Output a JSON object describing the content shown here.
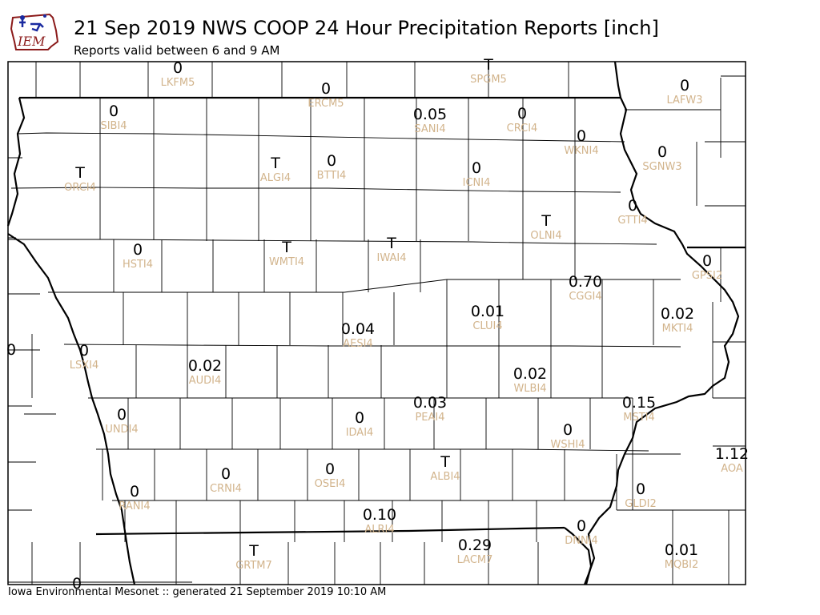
{
  "logo": {
    "text": "IEM"
  },
  "title": "21 Sep 2019 NWS COOP 24 Hour Precipitation Reports [inch]",
  "subtitle": "Reports valid between 6 and 9 AM",
  "footer": "Iowa Environmental Mesonet :: generated 21 September 2019 10:10 AM",
  "colors": {
    "value_text": "#000000",
    "station_id_text": "#d2b48c",
    "background": "#ffffff",
    "logo_red": "#8b1a1a",
    "logo_blue": "#1a2aa0"
  },
  "stations": [
    {
      "id": "LKFM5",
      "value": "0"
    },
    {
      "id": "SPGM5",
      "value": "T"
    },
    {
      "id": "ERCM5",
      "value": "0"
    },
    {
      "id": "LAFW3",
      "value": "0"
    },
    {
      "id": "SIBI4",
      "value": "0"
    },
    {
      "id": "SANI4",
      "value": "0.05"
    },
    {
      "id": "CRCI4",
      "value": "0"
    },
    {
      "id": "WKNI4",
      "value": "0"
    },
    {
      "id": "SGNW3",
      "value": "0"
    },
    {
      "id": "ORCI4",
      "value": "T"
    },
    {
      "id": "ALGI4",
      "value": "T"
    },
    {
      "id": "BTTI4",
      "value": "0"
    },
    {
      "id": "ICNI4",
      "value": "0"
    },
    {
      "id": "GTTI4",
      "value": "0"
    },
    {
      "id": "OLNI4",
      "value": "T"
    },
    {
      "id": "HSTI4",
      "value": "0"
    },
    {
      "id": "WMTI4",
      "value": "T"
    },
    {
      "id": "IWAI4",
      "value": "T"
    },
    {
      "id": "GPSI2",
      "value": "0"
    },
    {
      "id": "CGGI4",
      "value": "0.70"
    },
    {
      "id": "CLUI4",
      "value": "0.01"
    },
    {
      "id": "MKTI4",
      "value": "0.02"
    },
    {
      "id": "AESI4",
      "value": "0.04"
    },
    {
      "id": "LSXI4",
      "value": "0"
    },
    {
      "id": "AUDI4",
      "value": "0.02"
    },
    {
      "id": "WLBI4",
      "value": "0.02"
    },
    {
      "id": "PEAI4",
      "value": "0.03"
    },
    {
      "id": "MSTI4",
      "value": "0.15"
    },
    {
      "id": "UNDI4",
      "value": "0"
    },
    {
      "id": "IDAI4",
      "value": "0"
    },
    {
      "id": "WSHI4",
      "value": "0"
    },
    {
      "id": "AOA",
      "value": "1.12"
    },
    {
      "id": "CRNI4",
      "value": "0"
    },
    {
      "id": "OSEI4",
      "value": "0"
    },
    {
      "id": "ALBI4",
      "value": "T"
    },
    {
      "id": "RANI4",
      "value": "0"
    },
    {
      "id": "GLDI2",
      "value": "0"
    },
    {
      "id": "ALRI4",
      "value": "0.10"
    },
    {
      "id": "LACM7",
      "value": "0.29"
    },
    {
      "id": "DNNI4",
      "value": "0"
    },
    {
      "id": "MQBI2",
      "value": "0.01"
    },
    {
      "id": "GRTM7",
      "value": "T"
    }
  ],
  "edge_values": [
    "0",
    "0"
  ]
}
